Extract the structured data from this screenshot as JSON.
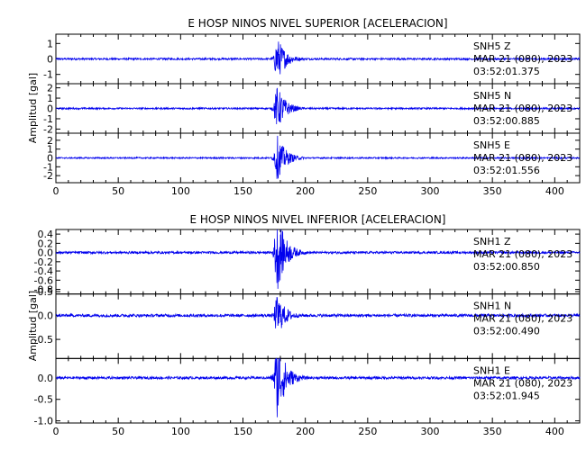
{
  "chart_data": [
    {
      "type": "line",
      "title": "E HOSP NINOS NIVEL SUPERIOR [ACELERACION]",
      "ylabel": "Amplitud [gal]",
      "xlim": [
        0,
        420
      ],
      "xticks": [
        "0",
        "50",
        "100",
        "150",
        "200",
        "250",
        "300",
        "350",
        "400"
      ],
      "event_time_s": 175,
      "traces": [
        {
          "station": "SNH5",
          "component": "Z",
          "date": "MAR 21 (080), 2023",
          "time": "03:52:01.375",
          "ylim": [
            -1.6,
            1.6
          ],
          "yticks": [
            -1,
            0,
            1
          ],
          "ytick_labels": [
            "-1",
            "0",
            "1"
          ],
          "noise": 0.06,
          "peak": 1.45
        },
        {
          "station": "SNH5",
          "component": "N",
          "date": "MAR 21 (080), 2023",
          "time": "03:52:00.885",
          "ylim": [
            -2.4,
            2.4
          ],
          "yticks": [
            -2,
            -1,
            0,
            1,
            2
          ],
          "ytick_labels": [
            "-2",
            "-1",
            "0",
            "1",
            "2"
          ],
          "noise": 0.08,
          "peak": 2.2
        },
        {
          "station": "SNH5",
          "component": "E",
          "date": "MAR 21 (080), 2023",
          "time": "03:52:01.556",
          "ylim": [
            -2.8,
            2.8
          ],
          "yticks": [
            -2,
            -1,
            0,
            1,
            2
          ],
          "ytick_labels": [
            "-2",
            "-1",
            "0",
            "1",
            "2"
          ],
          "noise": 0.08,
          "peak": 2.6
        }
      ]
    },
    {
      "type": "line",
      "title": "E HOSP NINOS NIVEL INFERIOR [ACELERACION]",
      "ylabel": "Amplitud [gal]",
      "xlim": [
        0,
        420
      ],
      "xticks": [
        "0",
        "50",
        "100",
        "150",
        "200",
        "250",
        "300",
        "350",
        "400"
      ],
      "event_time_s": 175,
      "traces": [
        {
          "station": "SNH1",
          "component": "Z",
          "date": "MAR 21 (080), 2023",
          "time": "03:52:00.850",
          "ylim": [
            -0.9,
            0.5
          ],
          "yticks": [
            -0.8,
            -0.6,
            -0.4,
            -0.2,
            0.0,
            0.2,
            0.4
          ],
          "ytick_labels": [
            "-0.8",
            "-0.6",
            "-0.4",
            "-0.2",
            "0.0",
            "0.2",
            "0.4"
          ],
          "noise": 0.025,
          "peak": 0.85
        },
        {
          "station": "SNH1",
          "component": "N",
          "date": "MAR 21 (080), 2023",
          "time": "03:52:00.490",
          "ylim": [
            -0.9,
            0.45
          ],
          "yticks": [
            -0.5,
            0.0,
            0.5
          ],
          "ytick_labels": [
            "-0.5",
            "0.0",
            "0.5"
          ],
          "noise": 0.03,
          "peak": 0.45
        },
        {
          "station": "SNH1",
          "component": "E",
          "date": "MAR 21 (080), 2023",
          "time": "03:52:01.945",
          "ylim": [
            -1.05,
            0.45
          ],
          "yticks": [
            -1.0,
            -0.5,
            0.0
          ],
          "ytick_labels": [
            "-1.0",
            "-0.5",
            "0.0"
          ],
          "noise": 0.03,
          "peak": 0.95
        }
      ]
    }
  ],
  "colors": {
    "trace": "#0000ee",
    "axes": "#000000",
    "background": "#ffffff"
  }
}
